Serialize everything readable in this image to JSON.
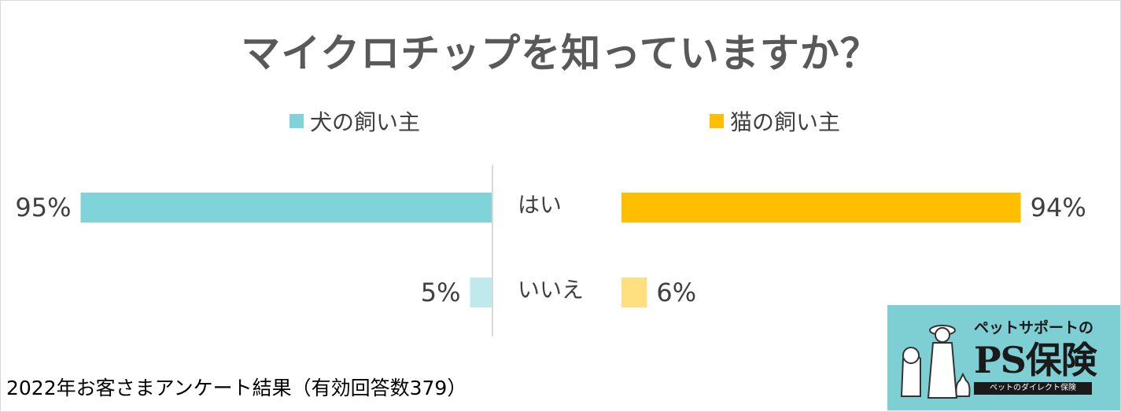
{
  "chart_data": {
    "type": "bar",
    "title": "マイクロチップを知っていますか？",
    "categories": [
      "はい",
      "いいえ"
    ],
    "series": [
      {
        "name": "犬の飼い主",
        "values": [
          95,
          5
        ],
        "labels": [
          "95%",
          "5%"
        ],
        "colors": [
          "#7fd3d9",
          "#bfe9ec"
        ]
      },
      {
        "name": "猫の飼い主",
        "values": [
          94,
          6
        ],
        "labels": [
          "94%",
          "6%"
        ],
        "colors": [
          "#ffbf00",
          "#ffdf80"
        ]
      }
    ],
    "xlim": [
      0,
      100
    ],
    "grid": false,
    "legend": "top"
  },
  "note": "2022年お客さまアンケート結果（有効回答数379）",
  "logo": {
    "tagline": "ペットサポートの",
    "brand": "PS保険",
    "sub": "ペットのダイレクト保険"
  }
}
